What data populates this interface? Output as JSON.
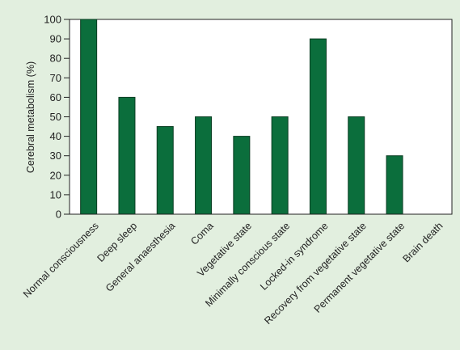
{
  "chart_data": {
    "type": "bar",
    "title": "",
    "xlabel": "",
    "ylabel": "Cerebral metabolism (%)",
    "ylim": [
      0,
      100
    ],
    "yticks": [
      0,
      10,
      20,
      30,
      40,
      50,
      60,
      70,
      80,
      90,
      100
    ],
    "grid": false,
    "legend": "none",
    "bar_color": "#0b6e3c",
    "background_color": "#e2efdf",
    "plot_background_color": "#ffffff",
    "categories": [
      "Normal consciousness",
      "Deep sleep",
      "General anaesthesia",
      "Coma",
      "Vegetative state",
      "Minimally conscious state",
      "Locked-in syndrome",
      "Recovery from vegetative state",
      "Permanent vegetative state",
      "Brain death"
    ],
    "values": [
      100,
      60,
      45,
      50,
      40,
      50,
      90,
      50,
      30,
      0
    ]
  }
}
